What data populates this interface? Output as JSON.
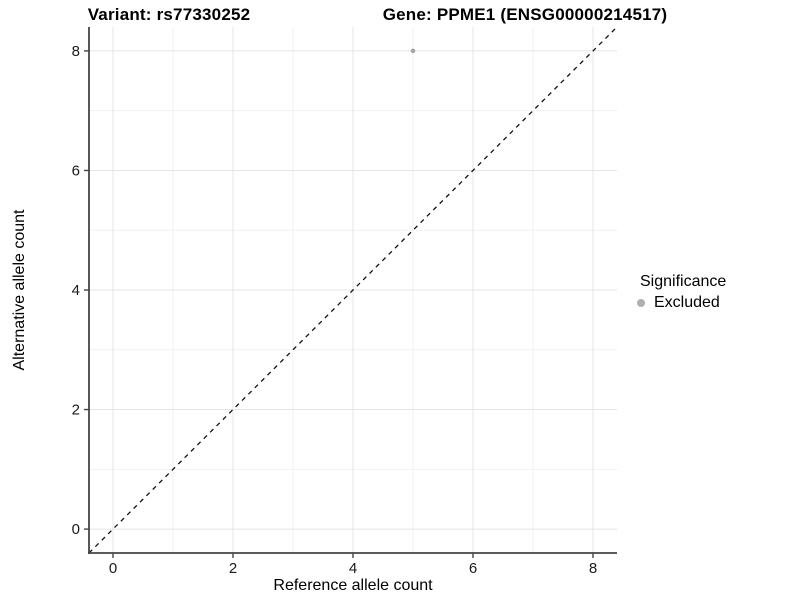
{
  "chart_data": {
    "type": "scatter",
    "title_left": "Variant: rs77330252",
    "title_right": "Gene: PPME1 (ENSG00000214517)",
    "xlabel": "Reference allele count",
    "ylabel": "Alternative allele count",
    "xlim": [
      -0.4,
      8.4
    ],
    "ylim": [
      -0.4,
      8.4
    ],
    "x_ticks": [
      0,
      2,
      4,
      6,
      8
    ],
    "y_ticks": [
      0,
      2,
      4,
      6,
      8
    ],
    "x_minor": [
      1,
      3,
      5,
      7
    ],
    "y_minor": [
      1,
      3,
      5,
      7
    ],
    "points": [
      {
        "x": 5,
        "y": 8,
        "significance": "Excluded"
      }
    ],
    "identity_line": {
      "slope": 1,
      "intercept": 0,
      "style": "dashed",
      "color": "#111111"
    },
    "legend": {
      "title": "Significance",
      "position": "right",
      "items": [
        {
          "label": "Excluded",
          "color": "#b0b0b0",
          "marker": "circle"
        }
      ]
    },
    "colors": {
      "point": "#a6a6a6",
      "grid_major": "#e4e4e4",
      "grid_minor": "#f1f1f1",
      "axis_line": "#454545",
      "background": "#ffffff"
    }
  }
}
